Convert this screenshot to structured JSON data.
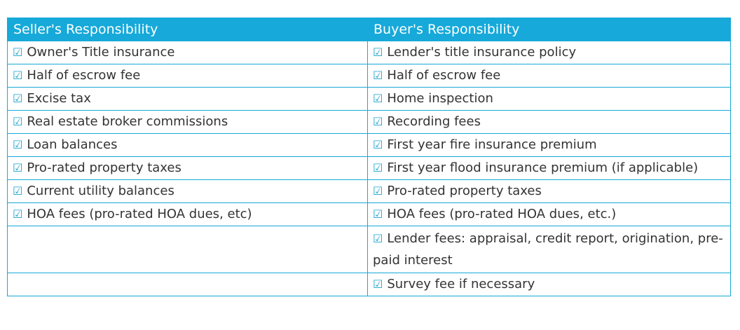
{
  "table": {
    "headers": {
      "seller": "Seller's Responsibility",
      "buyer": "Buyer's Responsibility"
    },
    "check_glyph": "☑",
    "rows": [
      {
        "seller": "Owner's Title insurance",
        "buyer": "Lender's title insurance policy"
      },
      {
        "seller": "Half of escrow fee",
        "buyer": "Half of escrow fee"
      },
      {
        "seller": "Excise tax",
        "buyer": "Home inspection"
      },
      {
        "seller": "Real estate broker commissions",
        "buyer": "Recording fees"
      },
      {
        "seller": "Loan balances",
        "buyer": "First year fire insurance premium"
      },
      {
        "seller": "Pro-rated property taxes",
        "buyer": "First year flood insurance premium (if applicable)"
      },
      {
        "seller": "Current utility balances",
        "buyer": "Pro-rated property taxes"
      },
      {
        "seller": "HOA fees (pro-rated HOA dues, etc)",
        "buyer": "HOA fees (pro-rated HOA dues, etc.)"
      },
      {
        "seller": "",
        "buyer": "Lender fees: appraisal, credit report, origination, pre-paid interest"
      },
      {
        "seller": "",
        "buyer": "Survey fee if necessary"
      }
    ]
  },
  "colors": {
    "header_bg": "#16a9d9",
    "border": "#16a9d9",
    "text": "#333333",
    "check": "#1aa3d0"
  }
}
